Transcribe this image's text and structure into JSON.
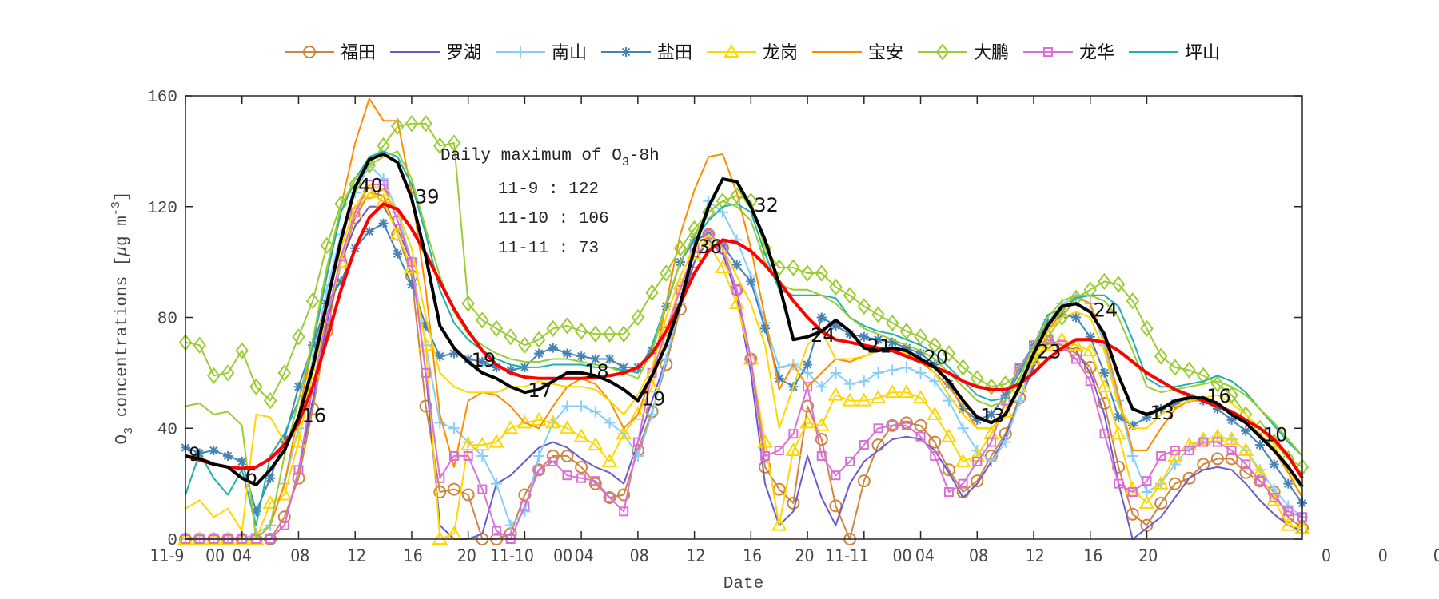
{
  "chart_data": {
    "type": "line",
    "xlabel": "Date",
    "ylabel_main": "O",
    "ylabel_sub": "3",
    "ylabel_rest": " concentrations [",
    "ylabel_mu": "μ",
    "ylabel_unit": "g m",
    "ylabel_sup": "-3",
    "ylabel_close": "]",
    "xlim": [
      0,
      79
    ],
    "ylim": [
      0,
      160
    ],
    "yticks": [
      0,
      40,
      80,
      120,
      160
    ],
    "xticks": [
      0,
      4,
      8,
      12,
      16,
      20,
      24,
      28,
      32,
      36,
      40,
      44,
      48,
      52,
      56,
      60,
      64,
      68
    ],
    "xtick_labels": [
      {
        "text": "11-9",
        "x": -1.3
      },
      {
        "text": "00",
        "x": 2.1
      },
      {
        "text": "04",
        "x": 4.0
      },
      {
        "text": "08",
        "x": 8.1
      },
      {
        "text": "12",
        "x": 12.1
      },
      {
        "text": "16",
        "x": 16.1
      },
      {
        "text": "20",
        "x": 19.9
      },
      {
        "text": "11-10",
        "x": 23.1
      },
      {
        "text": "00",
        "x": 26.7
      },
      {
        "text": "04",
        "x": 28.2
      },
      {
        "text": "08",
        "x": 32.1
      },
      {
        "text": "12",
        "x": 36.1
      },
      {
        "text": "16",
        "x": 40.1
      },
      {
        "text": "20",
        "x": 43.8
      },
      {
        "text": "11-11",
        "x": 46.8
      },
      {
        "text": "00",
        "x": 50.7
      },
      {
        "text": "04",
        "x": 52.3
      },
      {
        "text": "08",
        "x": 56.1
      },
      {
        "text": "12",
        "x": 60.1
      },
      {
        "text": "16",
        "x": 64.2
      },
      {
        "text": "20",
        "x": 68.1
      },
      {
        "text": "0",
        "x": 80.7
      },
      {
        "text": "0",
        "x": 84.7
      },
      {
        "text": "0",
        "x": 88.6
      }
    ],
    "grid": false,
    "legend_placement": "top (outside, horizontal)",
    "annotation": {
      "title_main": "Daily maximum of O",
      "title_sub": "3",
      "title_rest": "-8h",
      "lines": [
        "11-9 : 122",
        "11-10 : 106",
        "11-11 : 73"
      ]
    },
    "point_labels": {
      "hours": [
        0,
        4,
        8,
        12,
        16,
        20,
        24,
        28,
        32,
        36,
        40,
        44,
        48,
        52,
        56,
        60,
        64,
        68,
        72,
        76
      ],
      "texts": [
        "9",
        "6",
        "16",
        "40",
        "39",
        "19",
        "17",
        "18",
        "19",
        "36",
        "32",
        "24",
        "21",
        "20",
        "13",
        "23",
        "24",
        "13",
        "16",
        "10"
      ]
    },
    "series": [
      {
        "name": "福田",
        "color": "#cd853f",
        "marker": "circle",
        "legend": true,
        "values": [
          0,
          0,
          0,
          0,
          0,
          0,
          0,
          8,
          22,
          47,
          75,
          100,
          116,
          125,
          124,
          110,
          95,
          48,
          17,
          18,
          16,
          0,
          0,
          2,
          16,
          25,
          30,
          30,
          26,
          20,
          15,
          16,
          32,
          46,
          63,
          83,
          100,
          110,
          105,
          90,
          65,
          26,
          18,
          13,
          48,
          36,
          12,
          0,
          21,
          34,
          41,
          42,
          41,
          35,
          25,
          17,
          21,
          30,
          38,
          51,
          63,
          71,
          70,
          67,
          62,
          49,
          26,
          9,
          5,
          13,
          20,
          22,
          27,
          29,
          29,
          24,
          21,
          17,
          8,
          4
        ]
      },
      {
        "name": "罗湖",
        "color": "#6a5acd",
        "marker": "none",
        "legend": true,
        "values": [
          0,
          0,
          0,
          0,
          0,
          0,
          0,
          5,
          25,
          50,
          78,
          100,
          113,
          120,
          120,
          112,
          100,
          60,
          5,
          0,
          0,
          2,
          20,
          23,
          28,
          33,
          35,
          33,
          29,
          26,
          24,
          20,
          35,
          50,
          65,
          85,
          100,
          108,
          103,
          88,
          60,
          20,
          5,
          10,
          30,
          15,
          5,
          20,
          28,
          32,
          36,
          37,
          36,
          32,
          24,
          15,
          20,
          28,
          37,
          50,
          62,
          71,
          70,
          68,
          60,
          45,
          20,
          0,
          4,
          8,
          15,
          22,
          25,
          26,
          25,
          20,
          14,
          9,
          5,
          3
        ]
      },
      {
        "name": "南山",
        "color": "#87cefa",
        "marker": "plus",
        "legend": true,
        "values": [
          0,
          0,
          0,
          0,
          0,
          2,
          5,
          20,
          40,
          65,
          90,
          110,
          125,
          135,
          130,
          118,
          100,
          70,
          42,
          40,
          35,
          30,
          20,
          5,
          10,
          30,
          42,
          48,
          48,
          46,
          42,
          38,
          30,
          45,
          65,
          85,
          105,
          122,
          118,
          108,
          95,
          78,
          62,
          63,
          60,
          55,
          60,
          56,
          57,
          60,
          61,
          62,
          60,
          57,
          50,
          40,
          32,
          28,
          35,
          50,
          65,
          78,
          85,
          87,
          85,
          70,
          50,
          30,
          17,
          20,
          27,
          33,
          36,
          37,
          36,
          32,
          25,
          18,
          12,
          8
        ]
      },
      {
        "name": "盐田",
        "color": "#4682b4",
        "marker": "asterisk",
        "legend": true,
        "values": [
          33,
          31,
          32,
          30,
          28,
          10,
          22,
          36,
          55,
          70,
          85,
          93,
          105,
          111,
          114,
          103,
          92,
          77,
          66,
          67,
          65,
          64,
          62,
          61,
          62,
          67,
          69,
          67,
          66,
          65,
          65,
          62,
          62,
          68,
          84,
          100,
          108,
          110,
          106,
          99,
          93,
          76,
          58,
          55,
          63,
          80,
          77,
          74,
          73,
          72,
          71,
          69,
          67,
          63,
          56,
          47,
          43,
          45,
          52,
          62,
          70,
          78,
          81,
          80,
          73,
          60,
          44,
          41,
          44,
          47,
          49,
          51,
          50,
          47,
          43,
          39,
          34,
          27,
          20,
          13
        ]
      },
      {
        "name": "龙岗",
        "color": "#ffd700",
        "marker": "triangle",
        "legend": true,
        "values": [
          0,
          0,
          0,
          0,
          0,
          0,
          13,
          16,
          35,
          60,
          80,
          100,
          118,
          125,
          122,
          110,
          98,
          70,
          0,
          2,
          34,
          34,
          35,
          40,
          42,
          43,
          42,
          40,
          37,
          34,
          28,
          38,
          45,
          55,
          75,
          92,
          103,
          107,
          98,
          85,
          65,
          35,
          5,
          32,
          42,
          41,
          52,
          50,
          50,
          51,
          53,
          53,
          51,
          45,
          37,
          28,
          30,
          38,
          46,
          55,
          65,
          70,
          72,
          70,
          68,
          55,
          38,
          18,
          13,
          20,
          30,
          34,
          36,
          37,
          36,
          32,
          24,
          14,
          5,
          4
        ]
      },
      {
        "name": "宝安",
        "color": "#ff8c00",
        "marker": "none",
        "legend": true,
        "values": [
          0,
          0,
          0,
          0,
          0,
          0,
          5,
          20,
          45,
          70,
          95,
          120,
          143,
          159,
          151,
          151,
          125,
          90,
          45,
          26,
          50,
          53,
          52,
          48,
          42,
          40,
          48,
          55,
          58,
          56,
          50,
          40,
          45,
          60,
          85,
          110,
          126,
          138,
          139,
          125,
          105,
          80,
          54,
          63,
          55,
          60,
          65,
          64,
          66,
          68,
          68,
          67,
          64,
          60,
          55,
          48,
          40,
          40,
          45,
          55,
          65,
          75,
          82,
          88,
          85,
          72,
          52,
          32,
          32,
          40,
          47,
          50,
          50,
          48,
          45,
          42,
          38,
          32,
          24,
          15
        ]
      },
      {
        "name": "大鹏",
        "color": "#9acd32",
        "marker": "diamond",
        "legend": true,
        "values": [
          71,
          70,
          59,
          60,
          68,
          55,
          50,
          60,
          73,
          86,
          106,
          121,
          128,
          135,
          142,
          149,
          150,
          150,
          142,
          143,
          85,
          79,
          76,
          73,
          70,
          72,
          76,
          77,
          75,
          74,
          74,
          74,
          80,
          89,
          96,
          105,
          112,
          118,
          122,
          124,
          122,
          105,
          98,
          98,
          96,
          96,
          91,
          88,
          84,
          81,
          78,
          75,
          73,
          70,
          67,
          62,
          58,
          55,
          56,
          60,
          66,
          73,
          80,
          87,
          90,
          93,
          92,
          86,
          76,
          66,
          62,
          61,
          59,
          56,
          52,
          45,
          40,
          35,
          29,
          26
        ]
      },
      {
        "name": "龙华",
        "color": "#da70d6",
        "marker": "square",
        "legend": true,
        "values": [
          0,
          0,
          0,
          0,
          0,
          0,
          0,
          5,
          25,
          55,
          80,
          102,
          118,
          128,
          128,
          115,
          100,
          60,
          22,
          30,
          30,
          18,
          3,
          0,
          12,
          25,
          28,
          23,
          22,
          21,
          15,
          10,
          35,
          60,
          75,
          90,
          105,
          110,
          105,
          90,
          65,
          30,
          32,
          38,
          55,
          30,
          23,
          28,
          34,
          40,
          41,
          41,
          37,
          30,
          17,
          20,
          28,
          35,
          50,
          62,
          70,
          72,
          70,
          65,
          57,
          38,
          20,
          17,
          21,
          30,
          32,
          32,
          35,
          35,
          32,
          27,
          21,
          15,
          10,
          8
        ]
      },
      {
        "name": "坪山",
        "color": "#20b2aa",
        "marker": "none",
        "legend": true,
        "values": [
          16,
          31,
          22,
          16,
          25,
          5,
          30,
          38,
          50,
          70,
          95,
          118,
          130,
          138,
          140,
          138,
          128,
          110,
          90,
          78,
          72,
          68,
          65,
          63,
          62,
          62,
          63,
          63,
          63,
          62,
          62,
          61,
          60,
          70,
          85,
          100,
          108,
          115,
          120,
          121,
          118,
          103,
          90,
          88,
          88,
          88,
          87,
          80,
          77,
          75,
          74,
          72,
          70,
          67,
          62,
          57,
          52,
          50,
          51,
          60,
          70,
          81,
          83,
          87,
          88,
          88,
          84,
          72,
          58,
          55,
          55,
          56,
          57,
          59,
          57,
          53,
          47,
          41,
          35,
          30
        ]
      },
      {
        "color": "#9acd32",
        "marker": "none",
        "legend": false,
        "values": [
          48,
          49,
          45,
          46,
          41,
          0,
          5,
          30,
          50,
          72,
          98,
          120,
          130,
          135,
          138,
          140,
          130,
          112,
          95,
          82,
          74,
          70,
          67,
          65,
          64,
          64,
          65,
          65,
          64,
          63,
          62,
          60,
          58,
          68,
          85,
          100,
          110,
          118,
          122,
          120,
          115,
          100,
          92,
          90,
          90,
          88,
          85,
          80,
          76,
          74,
          72,
          70,
          68,
          65,
          60,
          55,
          50,
          48,
          50,
          58,
          70,
          80,
          86,
          88,
          88,
          86,
          80,
          68,
          55,
          53,
          54,
          55,
          56,
          57,
          55,
          52,
          47,
          42,
          36,
          30
        ]
      },
      {
        "color": "#ffd700",
        "marker": "none",
        "legend": false,
        "values": [
          11,
          14,
          8,
          11,
          3,
          45,
          44,
          35,
          40,
          60,
          85,
          105,
          120,
          128,
          126,
          118,
          105,
          80,
          60,
          55,
          53,
          53,
          53,
          55,
          55,
          57,
          56,
          55,
          55,
          54,
          50,
          45,
          52,
          62,
          80,
          95,
          105,
          110,
          105,
          95,
          85,
          70,
          40,
          55,
          70,
          75,
          65,
          65,
          66,
          68,
          68,
          67,
          65,
          60,
          52,
          45,
          40,
          40,
          44,
          54,
          65,
          75,
          80,
          82,
          80,
          68,
          48,
          40,
          40,
          45,
          48,
          50,
          51,
          52,
          49,
          45,
          40,
          34,
          25,
          18
        ]
      },
      {
        "color": "#ff0000",
        "marker": "none",
        "legend": false,
        "thick": true,
        "values": [
          30,
          28.5,
          27,
          26,
          25.5,
          26,
          29,
          34,
          42,
          55,
          72,
          90,
          105,
          116,
          121,
          119,
          112,
          103,
          93,
          83,
          75,
          68,
          63,
          60,
          58.5,
          58,
          58,
          58,
          58,
          58.5,
          59,
          60,
          62,
          67,
          75,
          85,
          96,
          104,
          108,
          107,
          104,
          99,
          93,
          86,
          80,
          75,
          72,
          71,
          70,
          69,
          68,
          66,
          64,
          62,
          60,
          57,
          55,
          54,
          54,
          56,
          60,
          65,
          69,
          72,
          72,
          71,
          68,
          64,
          60,
          57,
          54,
          52,
          50,
          48,
          46,
          43,
          40,
          36,
          30,
          22
        ]
      },
      {
        "color": "#000000",
        "marker": "none",
        "legend": false,
        "thick": true,
        "labeled": true,
        "values": [
          30,
          29,
          27,
          26,
          22,
          19.6,
          25,
          32,
          44,
          62,
          85,
          108,
          127,
          137,
          139,
          136,
          123,
          102,
          77,
          69,
          64,
          60,
          58,
          55,
          53,
          54,
          57,
          60,
          60,
          59,
          57,
          54,
          50,
          59,
          70,
          85,
          105,
          120,
          130,
          129,
          120,
          108,
          92,
          72,
          73,
          75,
          79,
          75,
          69,
          68,
          69,
          68,
          65,
          62,
          57,
          50,
          44,
          42,
          45,
          55,
          67,
          77,
          84,
          85,
          82,
          74,
          59,
          47,
          45,
          47,
          50,
          51,
          51,
          49,
          45,
          42,
          37,
          32,
          26,
          19
        ]
      }
    ]
  }
}
